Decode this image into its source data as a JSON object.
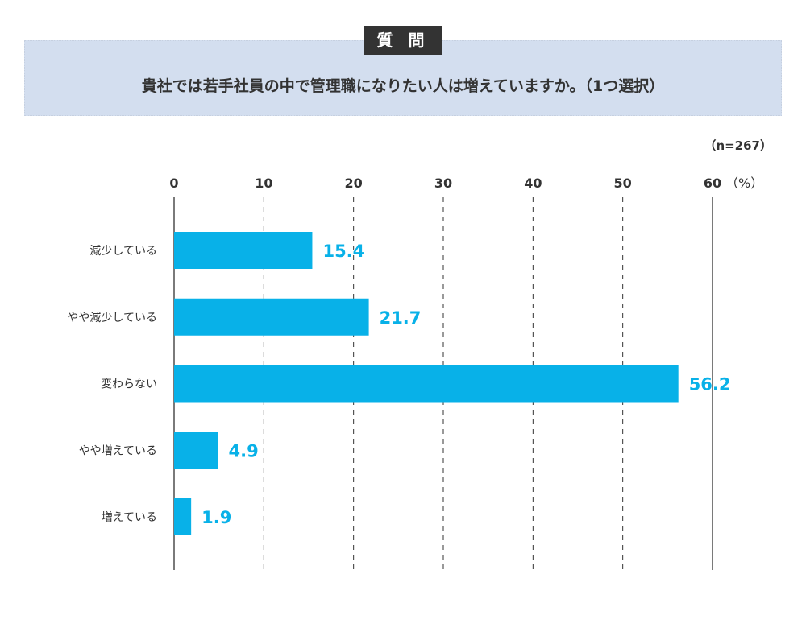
{
  "header": {
    "label": "質 問",
    "question": "貴社では若手社員の中で管理職になりたい人は増えていますか。（1つ選択）"
  },
  "chart_data": {
    "type": "bar",
    "orientation": "horizontal",
    "sample_note": "（n=267）",
    "categories": [
      "減少している",
      "やや減少している",
      "変わらない",
      "やや増えている",
      "増えている"
    ],
    "values": [
      15.4,
      21.7,
      56.2,
      4.9,
      1.9
    ],
    "value_labels": [
      "15.4",
      "21.7",
      "56.2",
      "4.9",
      "1.9"
    ],
    "xlim": [
      0,
      60
    ],
    "ticks": [
      0,
      10,
      20,
      30,
      40,
      50,
      60
    ],
    "tick_labels": [
      "0",
      "10",
      "20",
      "30",
      "40",
      "50",
      "60"
    ],
    "unit_label": "（%）",
    "grid": true,
    "colors": {
      "bar": "#08b1e8",
      "value_label": "#08b1e8",
      "text": "#333333"
    }
  }
}
